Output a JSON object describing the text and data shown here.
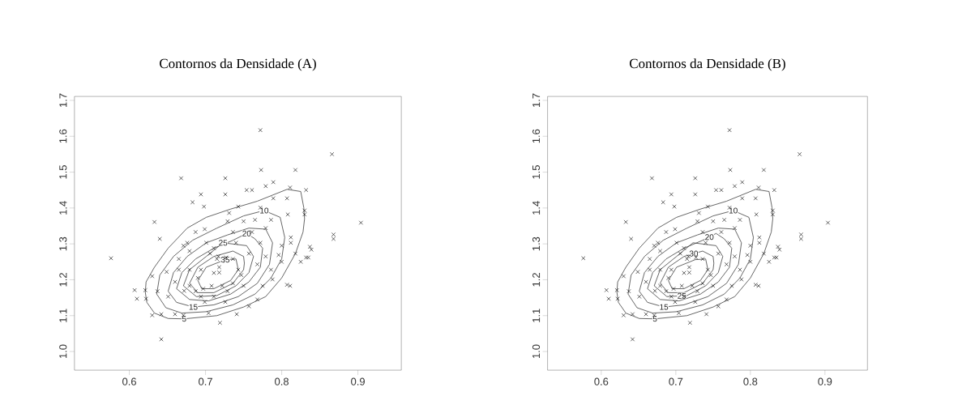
{
  "chart_data": [
    {
      "type": "scatter",
      "title": "Contornos da Densidade (A)",
      "xlim": [
        0.528,
        0.957
      ],
      "ylim": [
        0.948,
        1.711
      ],
      "xticks": [
        0.6,
        0.7,
        0.8,
        0.9
      ],
      "yticks": [
        {
          "value": 1.0,
          "label": "1.0"
        },
        1.1,
        1.2,
        1.3,
        1.4,
        1.5,
        1.6,
        1.7
      ],
      "series": [
        {
          "marker": "cross",
          "color": "#000000",
          "x": [
            0.576,
            0.607,
            0.61,
            0.621,
            0.622,
            0.63,
            0.63,
            0.633,
            0.64,
            0.642,
            0.642,
            0.649,
            0.66,
            0.668,
            0.671,
            0.672,
            0.694,
            0.683,
            0.698,
            0.671,
            0.679,
            0.687,
            0.699,
            0.701,
            0.706,
            0.711,
            0.715,
            0.718,
            0.711,
            0.708,
            0.697,
            0.687,
            0.69,
            0.665,
            0.679,
            0.694,
            0.719,
            0.717,
            0.722,
            0.729,
            0.736,
            0.743,
            0.736,
            0.74,
            0.729,
            0.726,
            0.726,
            0.731,
            0.743,
            0.754,
            0.761,
            0.772,
            0.773,
            0.772,
            0.779,
            0.789,
            0.789,
            0.765,
            0.761,
            0.772,
            0.779,
            0.786,
            0.775,
            0.768,
            0.757,
            0.741,
            0.726,
            0.704,
            0.796,
            0.8,
            0.807,
            0.811,
            0.811,
            0.807,
            0.808,
            0.812,
            0.812,
            0.818,
            0.832,
            0.83,
            0.83,
            0.835,
            0.837,
            0.839,
            0.832,
            0.866,
            0.868,
            0.868,
            0.904,
            0.818,
            0.825,
            0.747,
            0.75,
            0.711,
            0.699,
            0.768,
            0.757,
            0.679,
            0.718,
            0.727,
            0.736,
            0.75,
            0.779,
            0.786,
            0.8,
            0.788,
            0.694,
            0.66,
            0.651,
            0.637,
            0.665,
            0.676
          ],
          "values": [
            1.26,
            1.171,
            1.147,
            1.171,
            1.147,
            1.21,
            1.101,
            1.361,
            1.314,
            1.034,
            1.104,
            1.222,
            1.104,
            1.483,
            1.101,
            1.169,
            1.438,
            1.416,
            1.404,
            1.295,
            1.28,
            1.333,
            1.341,
            1.303,
            1.273,
            1.288,
            1.258,
            1.22,
            1.219,
            1.183,
            1.175,
            1.168,
            1.205,
            1.228,
            1.228,
            1.228,
            1.08,
            1.265,
            1.183,
            1.168,
            1.19,
            1.228,
            1.258,
            1.303,
            1.363,
            1.483,
            1.438,
            1.386,
            1.404,
            1.45,
            1.45,
            1.617,
            1.506,
            1.401,
            1.461,
            1.472,
            1.427,
            1.367,
            1.333,
            1.303,
            1.265,
            1.228,
            1.183,
            1.145,
            1.126,
            1.104,
            1.138,
            1.107,
            1.269,
            1.295,
            1.186,
            1.183,
            1.457,
            1.427,
            1.382,
            1.318,
            1.303,
            1.506,
            1.45,
            1.393,
            1.382,
            1.262,
            1.292,
            1.284,
            1.262,
            1.55,
            1.326,
            1.314,
            1.359,
            1.273,
            1.25,
            1.213,
            1.183,
            1.153,
            1.138,
            1.243,
            1.273,
            1.183,
            1.235,
            1.262,
            1.333,
            1.363,
            1.344,
            1.367,
            1.25,
            1.201,
            1.153,
            1.194,
            1.153,
            1.168,
            1.258,
            1.303
          ]
        },
        {
          "type": "line",
          "color": "#404040",
          "x": [
            0.621,
            0.622,
            0.633,
            0.651,
            0.676,
            0.701,
            0.733,
            0.768,
            0.807,
            0.825,
            0.829,
            0.83,
            null,
            0.621,
            0.623,
            0.633,
            0.651,
            0.672,
            0.715,
            0.75,
            0.779,
            0.8,
            0.818,
            0.828,
            0.83
          ],
          "values": [
            1.165,
            1.194,
            1.235,
            1.288,
            1.344,
            1.374,
            1.397,
            1.419,
            1.452,
            1.446,
            1.401,
            1.37,
            null,
            1.165,
            1.137,
            1.107,
            1.092,
            1.091,
            1.1,
            1.124,
            1.153,
            1.205,
            1.273,
            1.333,
            1.37
          ]
        },
        {
          "type": "line",
          "color": "#404040",
          "x": [
            0.636,
            0.64,
            0.658,
            0.683,
            0.715,
            0.75,
            0.777,
            0.798,
            0.804,
            null,
            0.636,
            0.648,
            0.669,
            0.701,
            0.736,
            0.765,
            0.786,
            0.8,
            0.804
          ],
          "values": [
            1.16,
            1.213,
            1.265,
            1.31,
            1.344,
            1.378,
            1.393,
            1.374,
            1.318,
            null,
            1.16,
            1.122,
            1.107,
            1.111,
            1.13,
            1.16,
            1.205,
            1.258,
            1.318
          ]
        },
        {
          "type": "line",
          "color": "#404040",
          "x": [
            0.651,
            0.658,
            0.676,
            0.701,
            0.729,
            0.757,
            0.779,
            0.788,
            null,
            0.651,
            0.662,
            0.684,
            0.711,
            0.743,
            0.768,
            0.784,
            0.788
          ],
          "values": [
            1.168,
            1.22,
            1.265,
            1.303,
            1.325,
            1.344,
            1.341,
            1.303,
            null,
            1.168,
            1.137,
            1.124,
            1.13,
            1.153,
            1.19,
            1.243,
            1.303
          ]
        },
        {
          "type": "line",
          "color": "#404040",
          "x": [
            0.662,
            0.669,
            0.687,
            0.711,
            0.736,
            0.754,
            0.765,
            0.775,
            null,
            0.662,
            0.679,
            0.704,
            0.733,
            0.757,
            0.772,
            0.775
          ],
          "values": [
            1.175,
            1.22,
            1.258,
            1.288,
            1.31,
            1.329,
            1.314,
            1.288,
            null,
            1.175,
            1.145,
            1.141,
            1.16,
            1.194,
            1.235,
            1.288
          ]
        },
        {
          "type": "line",
          "color": "#404040",
          "x": [
            0.671,
            0.679,
            0.701,
            0.723,
            0.754,
            0.763,
            null,
            0.671,
            0.688,
            0.715,
            0.74,
            0.757,
            0.763
          ],
          "values": [
            1.183,
            1.228,
            1.265,
            1.303,
            1.295,
            1.265,
            null,
            1.183,
            1.153,
            1.156,
            1.183,
            1.22,
            1.265
          ]
        },
        {
          "type": "line",
          "color": "#404040",
          "x": [
            0.679,
            0.69,
            0.711,
            0.736,
            0.75,
            0.751,
            null,
            0.679,
            0.69,
            0.711,
            0.736,
            0.75,
            0.751
          ],
          "values": [
            1.19,
            1.235,
            1.265,
            1.28,
            1.265,
            1.246,
            null,
            1.19,
            1.164,
            1.164,
            1.19,
            1.228,
            1.246
          ]
        },
        {
          "type": "line",
          "color": "#404040",
          "x": [
            0.69,
            0.701,
            0.726,
            0.74,
            0.743,
            null,
            0.69,
            0.695,
            0.711,
            0.733,
            0.743
          ],
          "values": [
            1.198,
            1.235,
            1.256,
            1.258,
            1.228,
            null,
            1.198,
            1.175,
            1.175,
            1.198,
            1.228
          ]
        }
      ],
      "annotations": [
        {
          "text": "5",
          "x": 0.672,
          "y": 1.091
        },
        {
          "text": "10",
          "x": 0.777,
          "y": 1.393
        },
        {
          "text": "15",
          "x": 0.684,
          "y": 1.124
        },
        {
          "text": "20",
          "x": 0.754,
          "y": 1.329
        },
        {
          "text": "25",
          "x": 0.723,
          "y": 1.303
        },
        {
          "text": "35",
          "x": 0.726,
          "y": 1.256
        }
      ]
    },
    {
      "type": "scatter",
      "title": "Contornos da Densidade (B)",
      "xlim": [
        0.528,
        0.957
      ],
      "ylim": [
        0.948,
        1.711
      ],
      "xticks": [
        0.6,
        0.7,
        0.8,
        0.9
      ],
      "yticks": [
        {
          "value": 1.0,
          "label": "1.0"
        },
        1.1,
        1.2,
        1.3,
        1.4,
        1.5,
        1.6,
        1.7
      ],
      "series": [
        {
          "marker": "cross",
          "color": "#000000",
          "x": [
            0.576,
            0.607,
            0.61,
            0.621,
            0.622,
            0.63,
            0.63,
            0.633,
            0.64,
            0.642,
            0.642,
            0.649,
            0.66,
            0.668,
            0.671,
            0.672,
            0.694,
            0.683,
            0.698,
            0.671,
            0.679,
            0.687,
            0.699,
            0.701,
            0.706,
            0.711,
            0.715,
            0.718,
            0.711,
            0.708,
            0.697,
            0.687,
            0.69,
            0.665,
            0.679,
            0.694,
            0.719,
            0.717,
            0.722,
            0.729,
            0.736,
            0.743,
            0.736,
            0.74,
            0.729,
            0.726,
            0.726,
            0.731,
            0.743,
            0.754,
            0.761,
            0.772,
            0.773,
            0.772,
            0.779,
            0.789,
            0.789,
            0.765,
            0.761,
            0.772,
            0.779,
            0.786,
            0.775,
            0.768,
            0.757,
            0.741,
            0.726,
            0.704,
            0.796,
            0.8,
            0.807,
            0.811,
            0.811,
            0.807,
            0.808,
            0.812,
            0.812,
            0.818,
            0.832,
            0.83,
            0.83,
            0.835,
            0.837,
            0.839,
            0.832,
            0.866,
            0.868,
            0.868,
            0.904,
            0.818,
            0.825,
            0.747,
            0.75,
            0.711,
            0.699,
            0.768,
            0.757,
            0.679,
            0.718,
            0.727,
            0.736,
            0.75,
            0.779,
            0.786,
            0.8,
            0.788,
            0.694,
            0.66,
            0.651,
            0.637,
            0.665,
            0.676
          ],
          "values": [
            1.26,
            1.171,
            1.147,
            1.171,
            1.147,
            1.21,
            1.101,
            1.361,
            1.314,
            1.034,
            1.104,
            1.222,
            1.104,
            1.483,
            1.101,
            1.169,
            1.438,
            1.416,
            1.404,
            1.295,
            1.28,
            1.333,
            1.341,
            1.303,
            1.273,
            1.288,
            1.258,
            1.22,
            1.219,
            1.183,
            1.175,
            1.168,
            1.205,
            1.228,
            1.228,
            1.228,
            1.08,
            1.265,
            1.183,
            1.168,
            1.19,
            1.228,
            1.258,
            1.303,
            1.363,
            1.483,
            1.438,
            1.386,
            1.404,
            1.45,
            1.45,
            1.617,
            1.506,
            1.401,
            1.461,
            1.472,
            1.427,
            1.367,
            1.333,
            1.303,
            1.265,
            1.228,
            1.183,
            1.145,
            1.126,
            1.104,
            1.138,
            1.107,
            1.269,
            1.295,
            1.186,
            1.183,
            1.457,
            1.427,
            1.382,
            1.318,
            1.303,
            1.506,
            1.45,
            1.393,
            1.382,
            1.262,
            1.292,
            1.284,
            1.262,
            1.55,
            1.326,
            1.314,
            1.359,
            1.273,
            1.25,
            1.213,
            1.183,
            1.153,
            1.138,
            1.243,
            1.273,
            1.183,
            1.235,
            1.262,
            1.333,
            1.363,
            1.344,
            1.367,
            1.25,
            1.201,
            1.153,
            1.194,
            1.153,
            1.168,
            1.258,
            1.303
          ]
        },
        {
          "type": "line",
          "color": "#404040",
          "x": [
            0.621,
            0.622,
            0.633,
            0.651,
            0.676,
            0.701,
            0.733,
            0.768,
            0.807,
            0.825,
            0.829,
            0.83,
            null,
            0.621,
            0.623,
            0.633,
            0.651,
            0.672,
            0.715,
            0.75,
            0.779,
            0.8,
            0.818,
            0.828,
            0.83
          ],
          "values": [
            1.165,
            1.194,
            1.235,
            1.288,
            1.344,
            1.374,
            1.397,
            1.419,
            1.452,
            1.446,
            1.401,
            1.37,
            null,
            1.165,
            1.137,
            1.107,
            1.092,
            1.091,
            1.1,
            1.124,
            1.153,
            1.205,
            1.273,
            1.333,
            1.37
          ]
        },
        {
          "type": "line",
          "color": "#404040",
          "x": [
            0.636,
            0.64,
            0.658,
            0.683,
            0.715,
            0.75,
            0.777,
            0.798,
            0.804,
            null,
            0.636,
            0.648,
            0.669,
            0.701,
            0.736,
            0.765,
            0.786,
            0.8,
            0.804
          ],
          "values": [
            1.16,
            1.213,
            1.265,
            1.31,
            1.344,
            1.378,
            1.393,
            1.374,
            1.318,
            null,
            1.16,
            1.122,
            1.107,
            1.111,
            1.13,
            1.16,
            1.205,
            1.258,
            1.318
          ]
        },
        {
          "type": "line",
          "color": "#404040",
          "x": [
            0.651,
            0.658,
            0.676,
            0.701,
            0.729,
            0.757,
            0.779,
            0.788,
            null,
            0.651,
            0.662,
            0.684,
            0.711,
            0.743,
            0.768,
            0.784,
            0.788
          ],
          "values": [
            1.168,
            1.22,
            1.265,
            1.303,
            1.325,
            1.344,
            1.341,
            1.303,
            null,
            1.168,
            1.137,
            1.124,
            1.13,
            1.153,
            1.19,
            1.243,
            1.303
          ]
        },
        {
          "type": "line",
          "color": "#404040",
          "x": [
            0.662,
            0.669,
            0.687,
            0.711,
            0.736,
            0.754,
            0.765,
            0.775,
            null,
            0.662,
            0.679,
            0.704,
            0.733,
            0.757,
            0.772,
            0.775
          ],
          "values": [
            1.175,
            1.22,
            1.258,
            1.288,
            1.31,
            1.329,
            1.314,
            1.288,
            null,
            1.175,
            1.145,
            1.141,
            1.16,
            1.194,
            1.235,
            1.288
          ]
        },
        {
          "type": "line",
          "color": "#404040",
          "x": [
            0.671,
            0.679,
            0.701,
            0.723,
            0.754,
            0.763,
            null,
            0.671,
            0.688,
            0.715,
            0.74,
            0.757,
            0.763
          ],
          "values": [
            1.183,
            1.228,
            1.265,
            1.303,
            1.295,
            1.265,
            null,
            1.183,
            1.153,
            1.156,
            1.183,
            1.22,
            1.265
          ]
        },
        {
          "type": "line",
          "color": "#404040",
          "x": [
            0.679,
            0.69,
            0.711,
            0.736,
            0.75,
            0.751,
            null,
            0.679,
            0.69,
            0.711,
            0.736,
            0.75,
            0.751
          ],
          "values": [
            1.19,
            1.235,
            1.265,
            1.28,
            1.265,
            1.246,
            null,
            1.19,
            1.164,
            1.164,
            1.19,
            1.228,
            1.246
          ]
        },
        {
          "type": "line",
          "color": "#404040",
          "x": [
            0.69,
            0.701,
            0.726,
            0.74,
            0.743,
            null,
            0.69,
            0.695,
            0.711,
            0.733,
            0.743
          ],
          "values": [
            1.198,
            1.235,
            1.256,
            1.258,
            1.228,
            null,
            1.198,
            1.175,
            1.175,
            1.198,
            1.228
          ]
        }
      ],
      "annotations": [
        {
          "text": "5",
          "x": 0.672,
          "y": 1.091
        },
        {
          "text": "10",
          "x": 0.777,
          "y": 1.393
        },
        {
          "text": "15",
          "x": 0.684,
          "y": 1.124
        },
        {
          "text": "20",
          "x": 0.745,
          "y": 1.319
        },
        {
          "text": "25",
          "x": 0.708,
          "y": 1.155
        },
        {
          "text": "30",
          "x": 0.724,
          "y": 1.273
        }
      ]
    }
  ]
}
